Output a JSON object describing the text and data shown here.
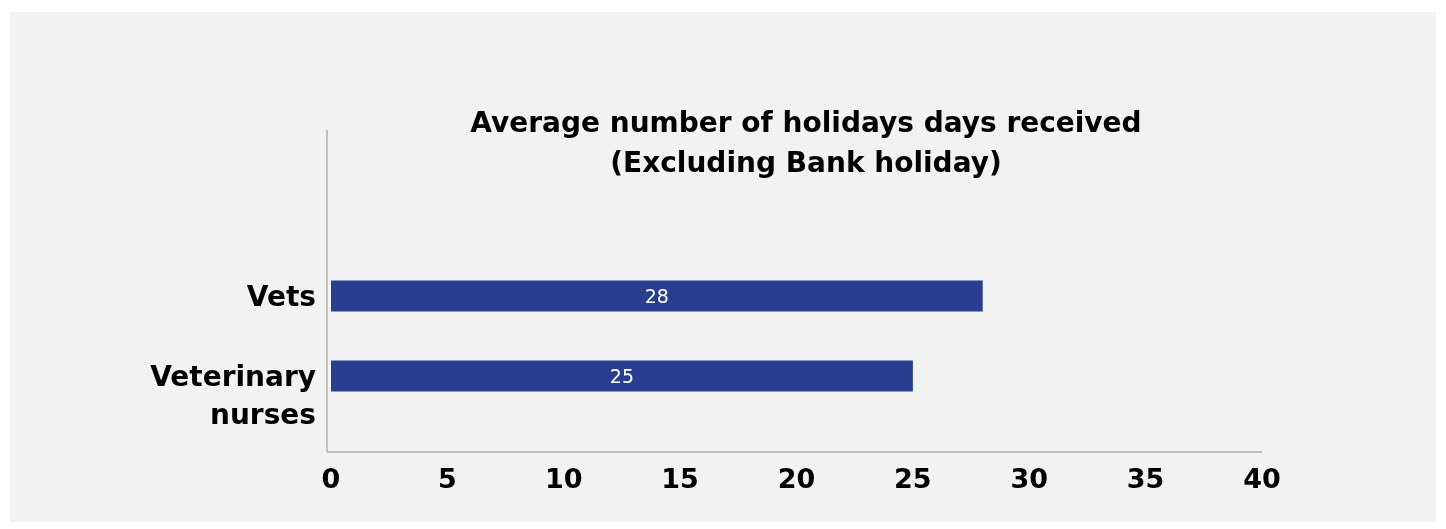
{
  "chart_data": {
    "type": "bar",
    "orientation": "horizontal",
    "title": "Average number of holidays days received\n(Excluding Bank holiday)",
    "categories": [
      "Vets",
      "Veterinary nurses"
    ],
    "values": [
      28,
      25
    ],
    "color": "#2a3e8f",
    "xlim": [
      0,
      40
    ],
    "xticks": [
      0,
      5,
      10,
      15,
      20,
      25,
      30,
      35,
      40
    ],
    "value_labels": [
      "28",
      "25"
    ]
  }
}
